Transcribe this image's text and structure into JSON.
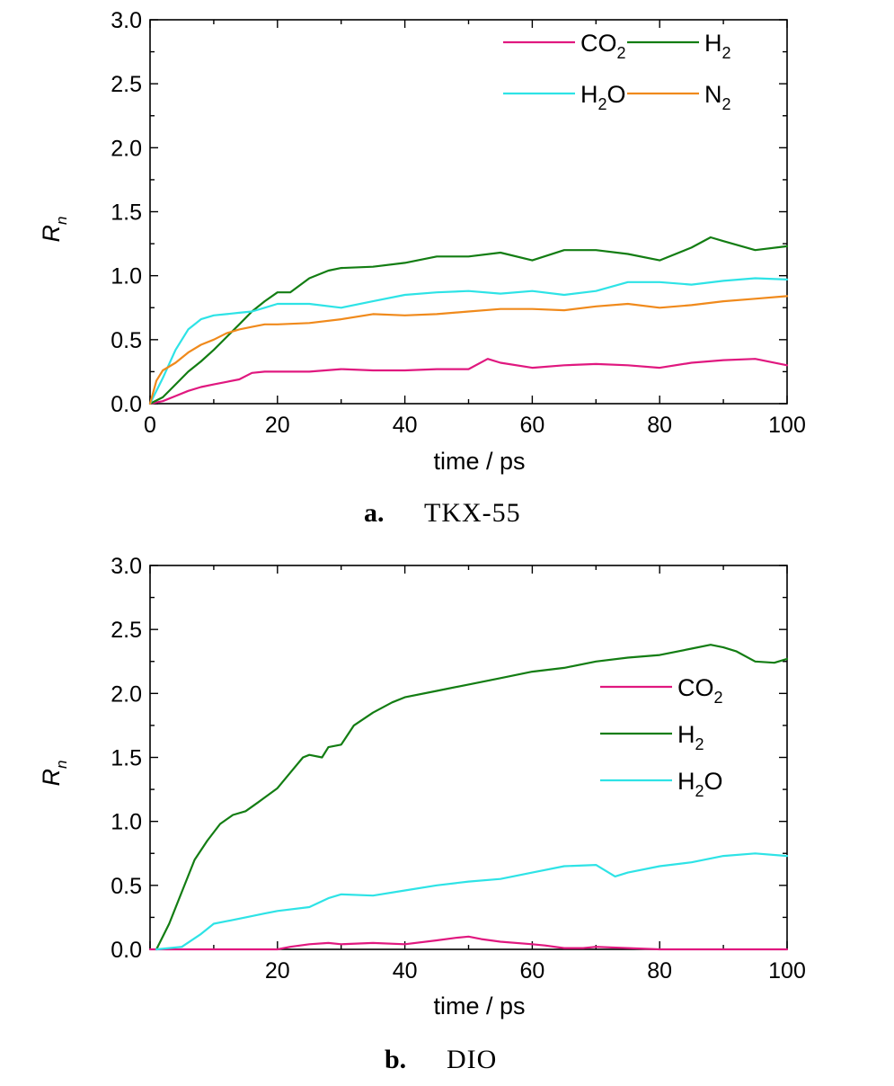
{
  "chart_data": [
    {
      "type": "line",
      "caption_letter": "a.",
      "caption_name": "TKX-55",
      "xlabel": "time / ps",
      "ylabel_main": "R",
      "ylabel_sub": "n",
      "xlim": [
        0,
        100
      ],
      "ylim": [
        0,
        3.0
      ],
      "xticks": [
        "0",
        "20",
        "40",
        "60",
        "80",
        "100"
      ],
      "xtick_values": [
        0,
        20,
        40,
        60,
        80,
        100
      ],
      "yticks": [
        "0.0",
        "0.5",
        "1.0",
        "1.5",
        "2.0",
        "2.5",
        "3.0"
      ],
      "ytick_values": [
        0,
        0.5,
        1.0,
        1.5,
        2.0,
        2.5,
        3.0
      ],
      "legend_position": "top-right",
      "legend_columns": 2,
      "series": [
        {
          "name_main": "CO",
          "name_sub": "2",
          "color": "#e0187f",
          "x": [
            0,
            2,
            4,
            6,
            8,
            10,
            12,
            14,
            16,
            18,
            20,
            25,
            30,
            35,
            40,
            45,
            50,
            53,
            55,
            60,
            65,
            70,
            75,
            80,
            85,
            90,
            95,
            100
          ],
          "y": [
            0,
            0.02,
            0.06,
            0.1,
            0.13,
            0.15,
            0.17,
            0.19,
            0.24,
            0.25,
            0.25,
            0.25,
            0.27,
            0.26,
            0.26,
            0.27,
            0.27,
            0.35,
            0.32,
            0.28,
            0.3,
            0.31,
            0.3,
            0.28,
            0.32,
            0.34,
            0.35,
            0.3
          ]
        },
        {
          "name_main": "H",
          "name_sub": "2",
          "color": "#137d13",
          "x": [
            0,
            2,
            4,
            6,
            8,
            10,
            12,
            14,
            16,
            18,
            20,
            22,
            25,
            28,
            30,
            35,
            40,
            45,
            50,
            55,
            60,
            65,
            70,
            75,
            80,
            85,
            88,
            90,
            95,
            100
          ],
          "y": [
            0,
            0.05,
            0.15,
            0.25,
            0.33,
            0.42,
            0.52,
            0.62,
            0.72,
            0.8,
            0.87,
            0.87,
            0.98,
            1.04,
            1.06,
            1.07,
            1.1,
            1.15,
            1.15,
            1.18,
            1.12,
            1.2,
            1.2,
            1.17,
            1.12,
            1.22,
            1.3,
            1.27,
            1.2,
            1.23
          ]
        },
        {
          "name_main": "H",
          "name_sub": "2",
          "name_tail": "O",
          "color": "#2ee3e6",
          "x": [
            0,
            2,
            4,
            6,
            8,
            10,
            12,
            14,
            16,
            18,
            20,
            25,
            30,
            35,
            40,
            45,
            50,
            55,
            60,
            65,
            70,
            75,
            80,
            85,
            90,
            95,
            100
          ],
          "y": [
            0,
            0.2,
            0.42,
            0.58,
            0.66,
            0.69,
            0.7,
            0.71,
            0.72,
            0.75,
            0.78,
            0.78,
            0.75,
            0.8,
            0.85,
            0.87,
            0.88,
            0.86,
            0.88,
            0.85,
            0.88,
            0.95,
            0.95,
            0.93,
            0.96,
            0.98,
            0.97
          ]
        },
        {
          "name_main": "N",
          "name_sub": "2",
          "color": "#f08a1c",
          "x": [
            0,
            1,
            2,
            4,
            6,
            8,
            10,
            12,
            14,
            16,
            18,
            20,
            25,
            30,
            35,
            40,
            45,
            50,
            55,
            60,
            65,
            70,
            75,
            80,
            85,
            90,
            95,
            100
          ],
          "y": [
            0,
            0.18,
            0.26,
            0.32,
            0.4,
            0.46,
            0.5,
            0.55,
            0.58,
            0.6,
            0.62,
            0.62,
            0.63,
            0.66,
            0.7,
            0.69,
            0.7,
            0.72,
            0.74,
            0.74,
            0.73,
            0.76,
            0.78,
            0.75,
            0.77,
            0.8,
            0.82,
            0.84
          ]
        }
      ]
    },
    {
      "type": "line",
      "caption_letter": "b.",
      "caption_name": "DIO",
      "xlabel": "time / ps",
      "ylabel_main": "R",
      "ylabel_sub": "n",
      "xlim": [
        0,
        100
      ],
      "ylim": [
        0,
        3.0
      ],
      "xticks": [
        "20",
        "40",
        "60",
        "80",
        "100"
      ],
      "xtick_values": [
        20,
        40,
        60,
        80,
        100
      ],
      "yticks": [
        "0.0",
        "0.5",
        "1.0",
        "1.5",
        "2.0",
        "2.5",
        "3.0"
      ],
      "ytick_values": [
        0,
        0.5,
        1.0,
        1.5,
        2.0,
        2.5,
        3.0
      ],
      "legend_position": "right",
      "legend_columns": 1,
      "series": [
        {
          "name_main": "CO",
          "name_sub": "2",
          "color": "#e0187f",
          "x": [
            0,
            20,
            22,
            25,
            28,
            30,
            35,
            40,
            45,
            48,
            50,
            52,
            55,
            60,
            62,
            65,
            68,
            70,
            75,
            80,
            85,
            90,
            95,
            100
          ],
          "y": [
            0,
            0,
            0.02,
            0.04,
            0.05,
            0.04,
            0.05,
            0.04,
            0.07,
            0.09,
            0.1,
            0.08,
            0.06,
            0.04,
            0.03,
            0.01,
            0.01,
            0.02,
            0.01,
            0,
            0,
            0,
            0,
            0
          ]
        },
        {
          "name_main": "H",
          "name_sub": "2",
          "color": "#137d13",
          "x": [
            1,
            3,
            5,
            7,
            9,
            11,
            13,
            15,
            17,
            20,
            22,
            24,
            25,
            27,
            28,
            30,
            32,
            35,
            38,
            40,
            45,
            50,
            55,
            60,
            65,
            70,
            75,
            80,
            85,
            88,
            90,
            92,
            95,
            98,
            100
          ],
          "y": [
            0,
            0.2,
            0.45,
            0.7,
            0.85,
            0.98,
            1.05,
            1.08,
            1.15,
            1.26,
            1.38,
            1.5,
            1.52,
            1.5,
            1.58,
            1.6,
            1.75,
            1.85,
            1.93,
            1.97,
            2.02,
            2.07,
            2.12,
            2.17,
            2.2,
            2.25,
            2.28,
            2.3,
            2.35,
            2.38,
            2.36,
            2.33,
            2.25,
            2.24,
            2.27
          ]
        },
        {
          "name_main": "H",
          "name_sub": "2",
          "name_tail": "O",
          "color": "#2ee3e6",
          "x": [
            1,
            5,
            8,
            10,
            12,
            15,
            18,
            20,
            25,
            28,
            30,
            35,
            40,
            45,
            50,
            55,
            60,
            65,
            70,
            73,
            75,
            80,
            85,
            90,
            95,
            100
          ],
          "y": [
            0,
            0.02,
            0.12,
            0.2,
            0.22,
            0.25,
            0.28,
            0.3,
            0.33,
            0.4,
            0.43,
            0.42,
            0.46,
            0.5,
            0.53,
            0.55,
            0.6,
            0.65,
            0.66,
            0.57,
            0.6,
            0.65,
            0.68,
            0.73,
            0.75,
            0.73
          ]
        }
      ]
    }
  ]
}
